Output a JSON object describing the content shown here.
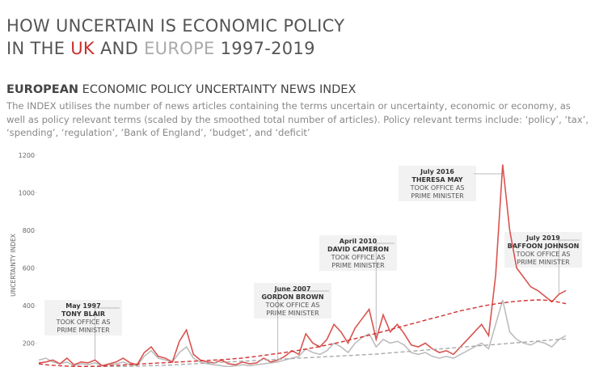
{
  "chart_data": {
    "type": "line",
    "title": [
      "HOW UNCERTAIN IS ECONOMIC POLICY",
      "IN THE ",
      "UK",
      " AND ",
      "EUROPE",
      " 1997-2019"
    ],
    "title_colors": [
      "#555555",
      "#555555",
      "#c9302c",
      "#555555",
      "#aaaaaa",
      "#555555"
    ],
    "subtitle": [
      "EUROPEAN",
      " ECONOMIC POLICY UNCERTAINTY NEWS INDEX"
    ],
    "description": "The INDEX utilises the number of news articles containing the terms uncertain or uncertainty, economic or economy, as well as policy relevant terms (scaled by the smoothed total number of articles). Policy relevant terms include: ‘policy’, ‘tax’, ‘spending’, ‘regulation’, ‘Bank of England’, ‘budget’, and ‘deficit’",
    "y_label": "UNCERTAINTY INDEX",
    "ylim": [
      0,
      1200
    ],
    "yticks": [
      200,
      400,
      600,
      800,
      1000,
      1200
    ],
    "categories": [
      null,
      null,
      null,
      null,
      null,
      null,
      null,
      null,
      null,
      null,
      null,
      null,
      null,
      null,
      null,
      null,
      null,
      null,
      null,
      null,
      null,
      null,
      null,
      null,
      null,
      null,
      null,
      null,
      null,
      null,
      null,
      null,
      null,
      null,
      null,
      null,
      null,
      null,
      null,
      null,
      null,
      null,
      null,
      null,
      null,
      null,
      null,
      null,
      null,
      null,
      null,
      null,
      null,
      null,
      null,
      null,
      null,
      null,
      null,
      null,
      null,
      null,
      null,
      null,
      null,
      null,
      null,
      null,
      null,
      null,
      null,
      null,
      null,
      null,
      null,
      null
    ],
    "series": [
      {
        "color": "#bdbdbd",
        "dashed": false,
        "values": [
          110,
          120,
          100,
          90,
          100,
          80,
          90,
          85,
          95,
          80,
          85,
          90,
          100,
          85,
          80,
          130,
          160,
          120,
          110,
          100,
          150,
          180,
          120,
          100,
          90,
          85,
          80,
          75,
          80,
          85,
          80,
          85,
          90,
          95,
          100,
          110,
          120,
          130,
          170,
          150,
          140,
          160,
          200,
          180,
          150,
          200,
          230,
          250,
          180,
          220,
          200,
          210,
          190,
          150,
          140,
          150,
          130,
          120,
          130,
          120,
          140,
          160,
          180,
          200,
          170,
          300,
          430,
          260,
          220,
          200,
          190,
          210,
          200,
          180,
          220,
          240
        ]
      },
      {
        "color": "#d9534f",
        "dashed": false,
        "values": [
          95,
          100,
          110,
          90,
          120,
          85,
          100,
          95,
          110,
          80,
          90,
          100,
          120,
          95,
          85,
          150,
          180,
          130,
          120,
          100,
          210,
          270,
          140,
          110,
          100,
          95,
          110,
          90,
          85,
          100,
          90,
          95,
          120,
          100,
          110,
          130,
          160,
          140,
          250,
          200,
          180,
          220,
          300,
          260,
          200,
          280,
          330,
          380,
          220,
          350,
          260,
          300,
          250,
          190,
          180,
          200,
          170,
          150,
          160,
          140,
          180,
          220,
          260,
          300,
          240,
          560,
          1150,
          800,
          600,
          550,
          500,
          480,
          450,
          420,
          460,
          480
        ]
      },
      {
        "color": "#aaaaaa",
        "dashed": true,
        "values": [
          70,
          70,
          70,
          70,
          70,
          71,
          71,
          72,
          72,
          73,
          74,
          75,
          76,
          77,
          78,
          79,
          80,
          81,
          82,
          84,
          86,
          88,
          90,
          92,
          94,
          96,
          98,
          100,
          102,
          104,
          106,
          108,
          110,
          112,
          114,
          116,
          118,
          120,
          122,
          124,
          126,
          128,
          130,
          132,
          134,
          136,
          138,
          140,
          142,
          145,
          148,
          151,
          154,
          157,
          160,
          163,
          166,
          169,
          172,
          175,
          178,
          181,
          184,
          187,
          190,
          193,
          196,
          199,
          202,
          205,
          208,
          211,
          214,
          217,
          220,
          222
        ]
      },
      {
        "color": "#d32f2f",
        "dashed": true,
        "values": [
          90,
          85,
          82,
          80,
          78,
          77,
          76,
          76,
          77,
          78,
          80,
          82,
          84,
          86,
          88,
          90,
          92,
          94,
          96,
          98,
          100,
          102,
          104,
          106,
          108,
          110,
          112,
          115,
          118,
          121,
          125,
          130,
          135,
          140,
          145,
          150,
          156,
          162,
          168,
          175,
          182,
          190,
          198,
          206,
          215,
          224,
          233,
          242,
          252,
          262,
          272,
          282,
          292,
          302,
          312,
          322,
          332,
          342,
          352,
          362,
          372,
          380,
          388,
          396,
          403,
          409,
          414,
          419,
          423,
          426,
          428,
          430,
          429,
          425,
          418,
          410
        ]
      }
    ],
    "annotations": [
      {
        "date": "May 1997",
        "name": "TONY BLAIR",
        "text": [
          "TOOK OFFICE AS",
          "PRIME MINISTER"
        ]
      },
      {
        "date": "June 2007",
        "name": "GORDON BROWN",
        "text": [
          "TOOK OFFICE AS",
          "PRIME MINISTER"
        ]
      },
      {
        "date": "April 2010",
        "name": "DAVID CAMERON",
        "text": [
          "TOOK OFFICE AS",
          "PRIME MINISTER"
        ]
      },
      {
        "date": "July 2016",
        "name": "THERESA MAY",
        "text": [
          "TOOK OFFICE AS",
          "PRIME MINISTER"
        ]
      },
      {
        "date": "July 2019",
        "name": "BAFFOON JOHNSON",
        "text": [
          "TOOK OFFICE AS",
          "PRIME MINISTER"
        ]
      }
    ]
  }
}
